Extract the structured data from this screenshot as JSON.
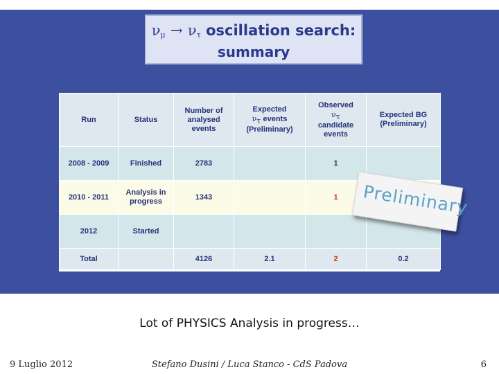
{
  "slide": {
    "title_line1": {
      "nu1": "ν",
      "sub1": "μ",
      "arrow": "→",
      "nu2": "ν",
      "sub2": "τ",
      "rest": " oscillation search:"
    },
    "title_line2": "summary",
    "caption": "Lot of PHYSICS Analysis in progress…",
    "stamp": "Preliminary"
  },
  "table": {
    "headers": {
      "run": "Run",
      "status": "Status",
      "analysed": "Number of analysed events",
      "expected_prefix": "Expected",
      "expected_nu": "ν",
      "expected_sub": "τ",
      "expected_suffix": " events",
      "expected_prelim": "(Preliminary)",
      "observed_prefix": "Observed",
      "observed_nu": "ν",
      "observed_sub": "τ",
      "observed_suffix": "candidate events",
      "bg": "Expected BG (Preliminary)"
    },
    "rows": [
      {
        "run": "2008 - 2009",
        "status": "Finished",
        "analysed": "2783",
        "expected": "",
        "observed": "1",
        "bg": ""
      },
      {
        "run": "2010 - 2011",
        "status": "Analysis in progress",
        "analysed": "1343",
        "expected": "",
        "observed": "1",
        "bg": ""
      },
      {
        "run": "2012",
        "status": "Started",
        "analysed": "",
        "expected": "",
        "observed": "",
        "bg": ""
      },
      {
        "run": "Total",
        "status": "",
        "analysed": "4126",
        "expected": "2.1",
        "observed": "2",
        "bg": "0.2"
      }
    ]
  },
  "footer": {
    "left": "9 Luglio 2012",
    "center": "Stefano Dusini / Luca Stanco - CdS Padova",
    "right": "6"
  },
  "colors": {
    "panel": "#3d4f9f",
    "title_text": "#2a3a8a",
    "table_text": "#26327a",
    "highlight_red": "#e02a10",
    "stamp_text": "#5aa3c6"
  }
}
